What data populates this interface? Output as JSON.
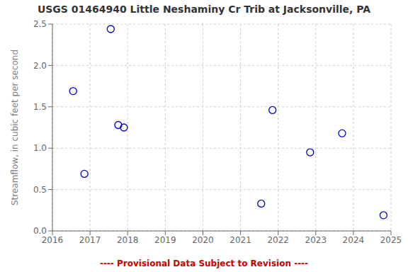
{
  "chart_data": {
    "type": "scatter",
    "title": "USGS 01464940 Little Neshaminy Cr Trib at Jacksonville, PA",
    "y_label": "Streamflow, in cubic feet per second",
    "annotations": [
      {
        "text": "---- Provisional Data Subject to Revision ----",
        "color": "#cc0000"
      }
    ],
    "x": [
      2016.55,
      2016.85,
      2017.55,
      2017.75,
      2017.9,
      2021.55,
      2021.85,
      2022.85,
      2023.7,
      2024.8
    ],
    "values": [
      1.69,
      0.69,
      2.44,
      1.28,
      1.25,
      0.33,
      1.46,
      0.95,
      1.18,
      0.19
    ],
    "color": "#0000cc",
    "marker": "open_circle",
    "xlim": [
      2016,
      2025
    ],
    "ylim": [
      0.0,
      2.5
    ],
    "xticks": [
      2016,
      2017,
      2018,
      2019,
      2020,
      2021,
      2022,
      2023,
      2024,
      2025
    ],
    "yticks": [
      {
        "value": 0.0,
        "label": "0.0"
      },
      0.5,
      {
        "value": 1.0,
        "label": "1.0"
      },
      1.5,
      {
        "value": 2.0,
        "label": "2.0"
      },
      2.5
    ],
    "grid": true
  }
}
